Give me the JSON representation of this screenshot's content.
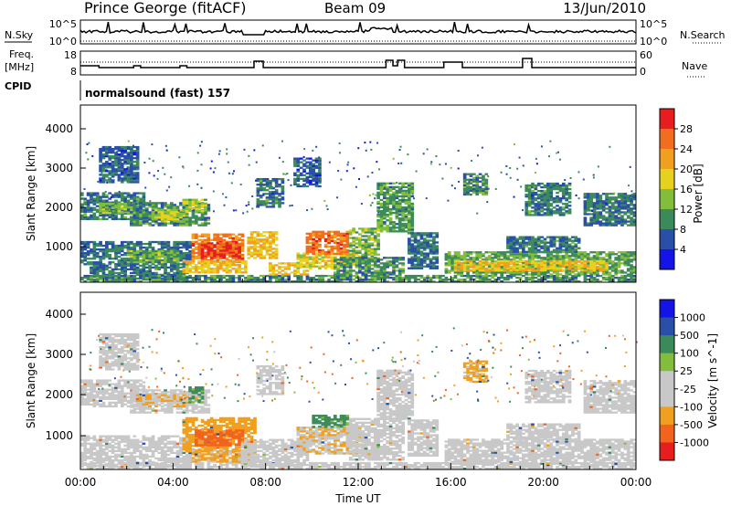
{
  "header": {
    "station": "Prince George (fitACF)",
    "beam": "Beam 09",
    "date": "13/Jun/2010"
  },
  "left_labels": {
    "nsky": "N.Sky",
    "freq_line1": "Freq.",
    "freq_line2": "[MHz]",
    "cpid": "CPID"
  },
  "right_labels": {
    "nsearch": "N.Search",
    "nave": "Nave"
  },
  "cpid_text": "normalsound (fast) 157",
  "noise_axis": {
    "left_top": "10^5",
    "left_bottom": "10^0",
    "right_top": "10^5",
    "right_bottom": "10^0"
  },
  "freq_axis": {
    "left_top": "18",
    "left_bottom": "8",
    "right_top": "60",
    "right_bottom": "0"
  },
  "colors": {
    "power": [
      "#1414e6",
      "#2a4fa8",
      "#3c8a5a",
      "#82be3c",
      "#e6d21e",
      "#f0a01e",
      "#f06e1e",
      "#e61e1e"
    ],
    "velocity": [
      "#e61e1e",
      "#f0641e",
      "#f0a01e",
      "#c8c8c8",
      "#c8c8c8",
      "#82be3c",
      "#3c8a5a",
      "#2a4fa8",
      "#1414e6"
    ]
  },
  "chart_data": [
    {
      "type": "heatmap",
      "name": "power-panel",
      "xlabel": "",
      "ylabel": "Slant Range [km]",
      "yticks": [
        "1000",
        "2000",
        "3000",
        "4000"
      ],
      "colorbar_title": "Power [dB]",
      "colorbar_ticks": [
        "4",
        "8",
        "12",
        "16",
        "20",
        "24",
        "28"
      ],
      "regions": [
        {
          "t0": 0.0,
          "t1": 2.7,
          "r0": 1700,
          "r1": 2350,
          "v": 9
        },
        {
          "t0": 0.8,
          "t1": 2.5,
          "r0": 1850,
          "r1": 2100,
          "v": 14
        },
        {
          "t0": 2.2,
          "t1": 5.6,
          "r0": 1550,
          "r1": 2100,
          "v": 10
        },
        {
          "t0": 3.1,
          "t1": 4.6,
          "r0": 1650,
          "r1": 1950,
          "v": 15
        },
        {
          "t0": 4.5,
          "t1": 5.4,
          "r0": 1900,
          "r1": 2200,
          "v": 15
        },
        {
          "t0": 0.0,
          "t1": 4.8,
          "r0": 600,
          "r1": 1150,
          "v": 8
        },
        {
          "t0": 0.5,
          "t1": 4.6,
          "r0": 250,
          "r1": 600,
          "v": 9
        },
        {
          "t0": 2.0,
          "t1": 4.2,
          "r0": 650,
          "r1": 950,
          "v": 13
        },
        {
          "t0": 0.0,
          "t1": 24.0,
          "r0": 180,
          "r1": 330,
          "v": 10
        },
        {
          "t0": 4.8,
          "t1": 7.0,
          "r0": 650,
          "r1": 1350,
          "v": 25
        },
        {
          "t0": 5.2,
          "t1": 6.9,
          "r0": 750,
          "r1": 1150,
          "v": 29
        },
        {
          "t0": 4.5,
          "t1": 7.2,
          "r0": 400,
          "r1": 700,
          "v": 20
        },
        {
          "t0": 7.2,
          "t1": 8.4,
          "r0": 750,
          "r1": 1400,
          "v": 20
        },
        {
          "t0": 8.2,
          "t1": 9.8,
          "r0": 350,
          "r1": 650,
          "v": 20
        },
        {
          "t0": 9.4,
          "t1": 11.8,
          "r0": 500,
          "r1": 900,
          "v": 18
        },
        {
          "t0": 9.8,
          "t1": 11.6,
          "r0": 850,
          "r1": 1400,
          "v": 25
        },
        {
          "t0": 11.6,
          "t1": 12.9,
          "r0": 700,
          "r1": 1500,
          "v": 14
        },
        {
          "t0": 11.0,
          "t1": 13.9,
          "r0": 350,
          "r1": 800,
          "v": 10
        },
        {
          "t0": 12.8,
          "t1": 14.3,
          "r0": 1400,
          "r1": 2600,
          "v": 11
        },
        {
          "t0": 14.2,
          "t1": 15.4,
          "r0": 500,
          "r1": 1400,
          "v": 8
        },
        {
          "t0": 15.8,
          "t1": 24.0,
          "r0": 350,
          "r1": 900,
          "v": 12
        },
        {
          "t0": 16.2,
          "t1": 22.8,
          "r0": 450,
          "r1": 700,
          "v": 19
        },
        {
          "t0": 18.5,
          "t1": 21.6,
          "r0": 900,
          "r1": 1300,
          "v": 9
        },
        {
          "t0": 19.2,
          "t1": 21.2,
          "r0": 1800,
          "r1": 2600,
          "v": 9
        },
        {
          "t0": 21.8,
          "t1": 24.0,
          "r0": 1550,
          "r1": 2350,
          "v": 8
        },
        {
          "t0": 7.6,
          "t1": 8.8,
          "r0": 2000,
          "r1": 2700,
          "v": 9
        },
        {
          "t0": 9.2,
          "t1": 10.3,
          "r0": 2500,
          "r1": 3200,
          "v": 7
        },
        {
          "t0": 16.6,
          "t1": 17.6,
          "r0": 2300,
          "r1": 2800,
          "v": 10
        },
        {
          "t0": 0.8,
          "t1": 2.5,
          "r0": 2600,
          "r1": 3500,
          "v": 7
        }
      ]
    },
    {
      "type": "heatmap",
      "name": "velocity-panel",
      "xlabel": "Time UT",
      "ylabel": "Slant Range [km]",
      "xticks": [
        "00:00",
        "04:00",
        "08:00",
        "12:00",
        "16:00",
        "20:00",
        "00:00"
      ],
      "yticks": [
        "1000",
        "2000",
        "3000",
        "4000"
      ],
      "colorbar_title": "Velocity [m s^-1]",
      "colorbar_ticks": [
        "1000",
        "500",
        "100",
        "25",
        "-25",
        "-100",
        "-500",
        "-1000"
      ],
      "regions": [
        {
          "t0": 0.0,
          "t1": 2.7,
          "r0": 1700,
          "r1": 2350,
          "v": 0
        },
        {
          "t0": 2.2,
          "t1": 5.6,
          "r0": 1550,
          "r1": 2100,
          "v": 0
        },
        {
          "t0": 2.4,
          "t1": 4.6,
          "r0": 1700,
          "r1": 2000,
          "v": -80
        },
        {
          "t0": 0.0,
          "t1": 4.8,
          "r0": 250,
          "r1": 1000,
          "v": 0
        },
        {
          "t0": 0.0,
          "t1": 24.0,
          "r0": 180,
          "r1": 330,
          "v": 0
        },
        {
          "t0": 4.5,
          "t1": 7.6,
          "r0": 600,
          "r1": 1450,
          "v": -300
        },
        {
          "t0": 5.0,
          "t1": 7.0,
          "r0": 750,
          "r1": 1150,
          "v": -600
        },
        {
          "t0": 4.8,
          "t1": 7.5,
          "r0": 350,
          "r1": 650,
          "v": -150
        },
        {
          "t0": 7.0,
          "t1": 9.8,
          "r0": 250,
          "r1": 900,
          "v": 0
        },
        {
          "t0": 9.4,
          "t1": 12.2,
          "r0": 550,
          "r1": 1200,
          "v": -80
        },
        {
          "t0": 10.0,
          "t1": 11.6,
          "r0": 1200,
          "r1": 1500,
          "v": 150
        },
        {
          "t0": 11.6,
          "t1": 13.9,
          "r0": 400,
          "r1": 1400,
          "v": 0
        },
        {
          "t0": 12.8,
          "t1": 14.3,
          "r0": 1400,
          "r1": 2600,
          "v": 0
        },
        {
          "t0": 14.2,
          "t1": 15.4,
          "r0": 500,
          "r1": 1400,
          "v": 0
        },
        {
          "t0": 15.8,
          "t1": 24.0,
          "r0": 300,
          "r1": 900,
          "v": 0
        },
        {
          "t0": 18.5,
          "t1": 21.6,
          "r0": 900,
          "r1": 1300,
          "v": 0
        },
        {
          "t0": 19.2,
          "t1": 21.2,
          "r0": 1800,
          "r1": 2600,
          "v": 0
        },
        {
          "t0": 21.8,
          "t1": 24.0,
          "r0": 1550,
          "r1": 2350,
          "v": 0
        },
        {
          "t0": 7.6,
          "t1": 8.8,
          "r0": 2000,
          "r1": 2700,
          "v": 0
        },
        {
          "t0": 16.6,
          "t1": 17.6,
          "r0": 2300,
          "r1": 2800,
          "v": -150
        },
        {
          "t0": 4.7,
          "t1": 5.3,
          "r0": 1800,
          "r1": 2200,
          "v": 150
        },
        {
          "t0": 0.8,
          "t1": 2.5,
          "r0": 2600,
          "r1": 3500,
          "v": 0
        }
      ]
    }
  ]
}
